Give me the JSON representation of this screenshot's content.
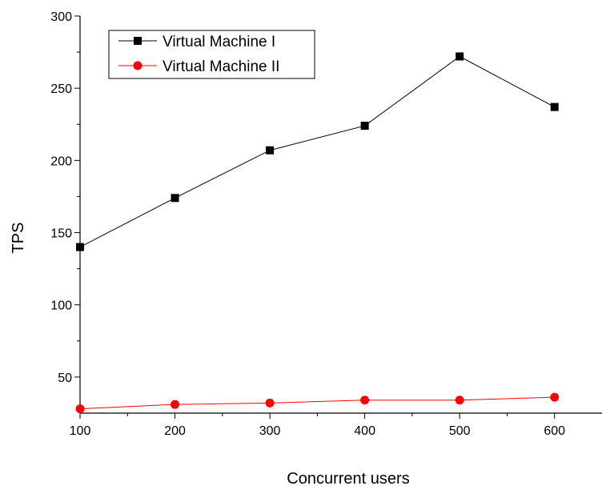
{
  "chart_data": {
    "type": "line",
    "title": "",
    "xlabel": "Concurrent users",
    "ylabel": "TPS",
    "x": [
      100,
      200,
      300,
      400,
      500,
      600
    ],
    "xlim": [
      100,
      650
    ],
    "ylim": [
      25,
      300
    ],
    "xticks": [
      100,
      200,
      300,
      400,
      500,
      600
    ],
    "xtick_labels": [
      "100",
      "200",
      "300",
      "400",
      "500",
      "600"
    ],
    "yticks": [
      50,
      100,
      150,
      200,
      250,
      300
    ],
    "ytick_labels": [
      "50",
      "100",
      "150",
      "200",
      "250",
      "300"
    ],
    "grid": false,
    "legend_position": "top-left",
    "series": [
      {
        "name": "Virtual Machine I",
        "values": [
          140,
          174,
          207,
          224,
          272,
          237
        ],
        "color": "#000000",
        "marker": "square"
      },
      {
        "name": "Virtual Machine II",
        "values": [
          28,
          31,
          32,
          34,
          34,
          36
        ],
        "color": "#ff0000",
        "marker": "circle"
      }
    ]
  }
}
